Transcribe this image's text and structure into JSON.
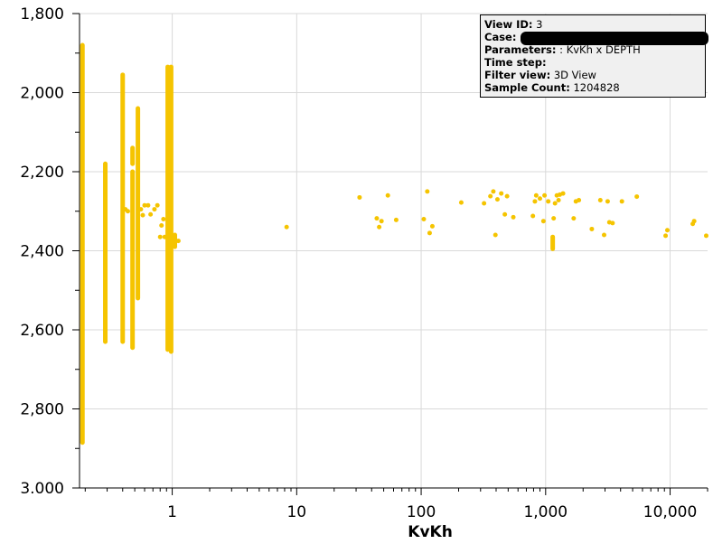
{
  "info_box": {
    "rows": [
      {
        "key": "View ID:",
        "value": "3"
      },
      {
        "key": "Case:",
        "value": ""
      },
      {
        "key": "Parameters:",
        "value": ": KvKh x DEPTH"
      },
      {
        "key": "Time step:",
        "value": ""
      },
      {
        "key": "Filter view:",
        "value": "3D View"
      },
      {
        "key": "Sample Count:",
        "value": "1204828"
      }
    ]
  },
  "colors": {
    "points": "#f5c400",
    "axis": "#000000",
    "grid": "#d9d9d9",
    "info_bg": "#f0f0f0"
  },
  "chart_data": {
    "type": "scatter",
    "title": "",
    "xlabel": "KvKh",
    "ylabel": "",
    "x_scale": "log",
    "y_inverted": true,
    "xlim": [
      0.18,
      20000
    ],
    "ylim": [
      1800,
      3000
    ],
    "grid": true,
    "x_tick_labels": [
      {
        "value": 1,
        "label": "1"
      },
      {
        "value": 10,
        "label": "10"
      },
      {
        "value": 100,
        "label": "100"
      },
      {
        "value": 1000,
        "label": "1,000"
      },
      {
        "value": 10000,
        "label": "10,000"
      }
    ],
    "y_tick_labels": [
      {
        "value": 1800,
        "label": "1,800"
      },
      {
        "value": 2000,
        "label": "2,000"
      },
      {
        "value": 2200,
        "label": "2,200"
      },
      {
        "value": 2400,
        "label": "2,400"
      },
      {
        "value": 2600,
        "label": "2,600"
      },
      {
        "value": 2800,
        "label": "2,800"
      },
      {
        "value": 3000,
        "label": "3.000"
      }
    ],
    "vertical_bands": [
      {
        "x": 0.19,
        "y_top": 1880,
        "y_bottom": 2885
      },
      {
        "x": 0.29,
        "y_top": 2180,
        "y_bottom": 2630
      },
      {
        "x": 0.4,
        "y_top": 1955,
        "y_bottom": 2630
      },
      {
        "x": 0.48,
        "y_top": 2200,
        "y_bottom": 2645
      },
      {
        "x": 0.48,
        "y_top": 2140,
        "y_bottom": 2180
      },
      {
        "x": 0.53,
        "y_top": 2040,
        "y_bottom": 2520
      },
      {
        "x": 0.92,
        "y_top": 1935,
        "y_bottom": 2650
      },
      {
        "x": 0.98,
        "y_top": 1935,
        "y_bottom": 2655
      },
      {
        "x": 1.05,
        "y_top": 2360,
        "y_bottom": 2390
      },
      {
        "x": 1140,
        "y_top": 2365,
        "y_bottom": 2395
      }
    ],
    "points": [
      [
        0.42,
        2295
      ],
      [
        0.44,
        2300
      ],
      [
        0.56,
        2295
      ],
      [
        0.58,
        2310
      ],
      [
        0.6,
        2285
      ],
      [
        0.64,
        2285
      ],
      [
        0.67,
        2308
      ],
      [
        0.72,
        2295
      ],
      [
        0.76,
        2285
      ],
      [
        0.8,
        2365
      ],
      [
        0.82,
        2336
      ],
      [
        0.85,
        2320
      ],
      [
        0.87,
        2365
      ],
      [
        1.12,
        2375
      ],
      [
        8.3,
        2340
      ],
      [
        32,
        2265
      ],
      [
        44,
        2318
      ],
      [
        46,
        2340
      ],
      [
        48,
        2325
      ],
      [
        54,
        2260
      ],
      [
        63,
        2322
      ],
      [
        105,
        2320
      ],
      [
        112,
        2250
      ],
      [
        117,
        2355
      ],
      [
        123,
        2338
      ],
      [
        210,
        2278
      ],
      [
        320,
        2280
      ],
      [
        360,
        2262
      ],
      [
        380,
        2250
      ],
      [
        395,
        2360
      ],
      [
        410,
        2270
      ],
      [
        440,
        2255
      ],
      [
        470,
        2308
      ],
      [
        490,
        2262
      ],
      [
        550,
        2315
      ],
      [
        790,
        2312
      ],
      [
        820,
        2275
      ],
      [
        840,
        2260
      ],
      [
        900,
        2268
      ],
      [
        960,
        2325
      ],
      [
        980,
        2260
      ],
      [
        1050,
        2275
      ],
      [
        1160,
        2318
      ],
      [
        1190,
        2280
      ],
      [
        1230,
        2260
      ],
      [
        1270,
        2272
      ],
      [
        1300,
        2258
      ],
      [
        1380,
        2255
      ],
      [
        1680,
        2318
      ],
      [
        1750,
        2275
      ],
      [
        1850,
        2272
      ],
      [
        2350,
        2345
      ],
      [
        2750,
        2272
      ],
      [
        2950,
        2360
      ],
      [
        3150,
        2275
      ],
      [
        3250,
        2328
      ],
      [
        3450,
        2330
      ],
      [
        4100,
        2275
      ],
      [
        5400,
        2263
      ],
      [
        9200,
        2362
      ],
      [
        9500,
        2348
      ],
      [
        15200,
        2332
      ],
      [
        15600,
        2325
      ],
      [
        19500,
        2362
      ]
    ]
  }
}
